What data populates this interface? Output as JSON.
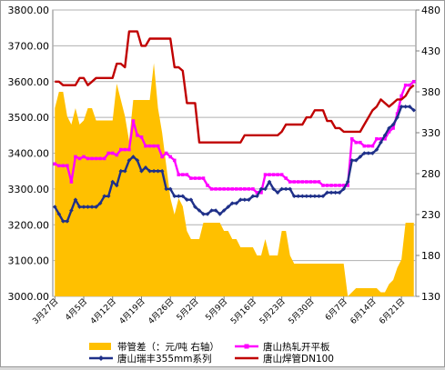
{
  "chart_data": {
    "type": "line",
    "title": "",
    "xlabel": "",
    "ylabel": "",
    "ylim": [
      3000,
      3800
    ],
    "y2lim": [
      130,
      480
    ],
    "grid": "horizontal",
    "legend_position": "bottom",
    "left_ticks": [
      "3000.00",
      "3100.00",
      "3200.00",
      "3300.00",
      "3400.00",
      "3500.00",
      "3600.00",
      "3700.00",
      "3800.00"
    ],
    "right_ticks": [
      "130",
      "180",
      "230",
      "280",
      "330",
      "380",
      "430",
      "480"
    ],
    "x_ticks": [
      "3月27日",
      "4月5日",
      "4月12日",
      "4月19日",
      "4月26日",
      "5月2日",
      "5月9日",
      "5月16日",
      "5月23日",
      "5月30日",
      "6月7日",
      "6月14日",
      "6月21日"
    ],
    "x_tick_index": [
      0,
      7,
      14,
      21,
      28,
      34,
      41,
      48,
      55,
      62,
      70,
      77,
      84
    ],
    "n_points": 88,
    "series": [
      {
        "name": "带管差（：元/吨 右轴）",
        "axis": "right",
        "kind": "area",
        "color": "#ffc000",
        "values": [
          360,
          380,
          380,
          350,
          340,
          360,
          340,
          345,
          360,
          360,
          345,
          345,
          345,
          345,
          345,
          390,
          370,
          350,
          320,
          370,
          370,
          370,
          370,
          370,
          415,
          360,
          330,
          290,
          250,
          230,
          250,
          240,
          210,
          200,
          200,
          200,
          220,
          220,
          220,
          220,
          220,
          210,
          210,
          200,
          200,
          190,
          190,
          190,
          190,
          180,
          180,
          200,
          180,
          180,
          180,
          210,
          210,
          180,
          170,
          170,
          170,
          170,
          170,
          170,
          170,
          170,
          170,
          170,
          170,
          170,
          170,
          130,
          135,
          140,
          140,
          140,
          140,
          140,
          140,
          135,
          135,
          145,
          150,
          165,
          175,
          220,
          220,
          220
        ]
      },
      {
        "name": "唐山热轧开平板",
        "axis": "left",
        "kind": "line-square",
        "color": "#ff00ff",
        "values": [
          3370,
          3365,
          3365,
          3365,
          3320,
          3390,
          3385,
          3390,
          3385,
          3385,
          3385,
          3385,
          3385,
          3400,
          3400,
          3395,
          3410,
          3410,
          3410,
          3490,
          3450,
          3445,
          3420,
          3420,
          3420,
          3420,
          3390,
          3400,
          3390,
          3380,
          3340,
          3340,
          3340,
          3330,
          3330,
          3330,
          3330,
          3310,
          3300,
          3300,
          3300,
          3300,
          3300,
          3300,
          3300,
          3300,
          3300,
          3300,
          3300,
          3290,
          3290,
          3340,
          3340,
          3340,
          3340,
          3340,
          3330,
          3320,
          3320,
          3320,
          3320,
          3320,
          3320,
          3320,
          3320,
          3310,
          3310,
          3310,
          3310,
          3310,
          3310,
          3310,
          3440,
          3430,
          3430,
          3420,
          3420,
          3420,
          3440,
          3440,
          3440,
          3460,
          3470,
          3510,
          3560,
          3590,
          3590,
          3600
        ]
      },
      {
        "name": "唐山瑞丰355mm系列",
        "axis": "left",
        "kind": "line-diamond",
        "color": "#1f3089",
        "values": [
          3250,
          3230,
          3210,
          3210,
          3240,
          3270,
          3250,
          3250,
          3250,
          3250,
          3250,
          3260,
          3280,
          3280,
          3320,
          3310,
          3350,
          3350,
          3380,
          3390,
          3380,
          3350,
          3360,
          3350,
          3350,
          3350,
          3350,
          3300,
          3300,
          3280,
          3280,
          3280,
          3270,
          3270,
          3250,
          3240,
          3230,
          3230,
          3240,
          3240,
          3230,
          3240,
          3250,
          3260,
          3260,
          3270,
          3270,
          3270,
          3280,
          3280,
          3300,
          3300,
          3320,
          3300,
          3290,
          3300,
          3300,
          3300,
          3280,
          3280,
          3280,
          3280,
          3280,
          3280,
          3280,
          3280,
          3290,
          3290,
          3290,
          3290,
          3300,
          3320,
          3380,
          3380,
          3390,
          3400,
          3400,
          3400,
          3410,
          3430,
          3450,
          3470,
          3480,
          3500,
          3530,
          3530,
          3530,
          3520
        ]
      },
      {
        "name": "唐山焊管DN100",
        "axis": "left",
        "kind": "line",
        "color": "#c00000",
        "values": [
          3600,
          3600,
          3590,
          3590,
          3590,
          3590,
          3610,
          3610,
          3590,
          3600,
          3610,
          3610,
          3610,
          3610,
          3610,
          3650,
          3650,
          3640,
          3740,
          3740,
          3740,
          3700,
          3700,
          3720,
          3720,
          3720,
          3720,
          3720,
          3720,
          3640,
          3640,
          3630,
          3540,
          3540,
          3540,
          3430,
          3430,
          3430,
          3430,
          3430,
          3430,
          3430,
          3430,
          3430,
          3430,
          3430,
          3450,
          3450,
          3450,
          3450,
          3450,
          3450,
          3450,
          3450,
          3450,
          3460,
          3480,
          3480,
          3480,
          3480,
          3480,
          3500,
          3500,
          3520,
          3520,
          3520,
          3490,
          3490,
          3470,
          3470,
          3460,
          3460,
          3460,
          3460,
          3460,
          3480,
          3500,
          3520,
          3530,
          3550,
          3540,
          3530,
          3540,
          3550,
          3550,
          3560,
          3580,
          3590
        ]
      }
    ]
  }
}
